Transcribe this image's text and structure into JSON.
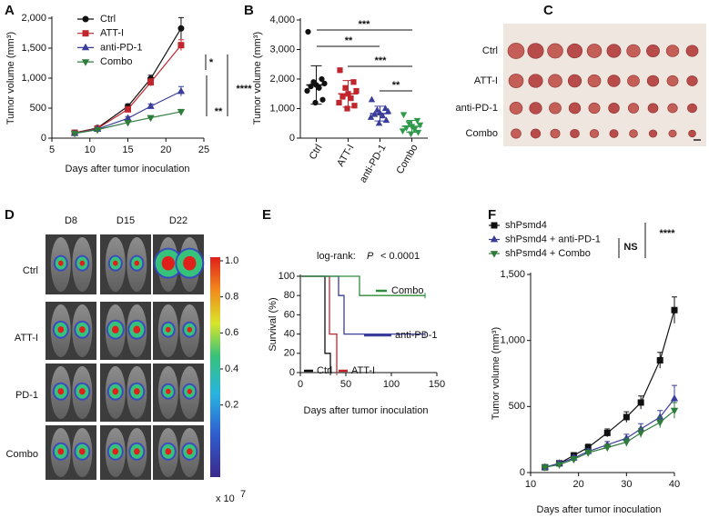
{
  "chart_data": [
    {
      "type": "line",
      "panel": "A",
      "x_label": "Days after tumor inoculation",
      "y_label": "Tumor volume (mm³)",
      "xlim": [
        5,
        25
      ],
      "xticks": [
        5,
        10,
        15,
        20,
        25
      ],
      "ylim": [
        0,
        2000
      ],
      "yticks": [
        0,
        500,
        {
          "value": 1000,
          "label": "1,000"
        },
        {
          "value": 1500,
          "label": "1,500"
        },
        {
          "value": 2000,
          "label": "2,000"
        }
      ],
      "x": [
        8,
        11,
        15,
        18,
        22
      ],
      "series": [
        {
          "name": "Ctrl",
          "color": "#111111",
          "marker": "circle",
          "values": [
            90,
            170,
            530,
            990,
            1830
          ],
          "errors": [
            15,
            20,
            40,
            60,
            180
          ]
        },
        {
          "name": "ATT-I",
          "color": "#c0262d",
          "marker": "square",
          "values": [
            90,
            160,
            480,
            930,
            1550
          ],
          "errors": [
            15,
            20,
            40,
            60,
            90
          ]
        },
        {
          "name": "anti-PD-1",
          "color": "#3a3d99",
          "marker": "triangle",
          "values": [
            80,
            150,
            330,
            530,
            780
          ],
          "errors": [
            15,
            20,
            30,
            40,
            80
          ]
        },
        {
          "name": "Combo",
          "color": "#2e7d3a",
          "marker": "triangle-down",
          "values": [
            80,
            140,
            260,
            340,
            440
          ],
          "errors": [
            15,
            20,
            25,
            30,
            40
          ]
        }
      ],
      "annotations": [
        "*",
        "**",
        "****"
      ]
    },
    {
      "type": "dot",
      "panel": "B",
      "y_label": "Tumor volume (mm³)",
      "ylim": [
        0,
        4000
      ],
      "yticks": [
        0,
        {
          "value": 1000,
          "label": "1,000"
        },
        {
          "value": 2000,
          "label": "2,000"
        },
        {
          "value": 3000,
          "label": "3,000"
        },
        {
          "value": 4000,
          "label": "4,000"
        }
      ],
      "groups": [
        {
          "name": "Ctrl",
          "color": "#111111",
          "marker": "circle",
          "points": [
            3600,
            2000,
            1900,
            1850,
            1800,
            1750,
            1700,
            1600,
            1300,
            1200
          ],
          "mean": 1800,
          "sd": 650
        },
        {
          "name": "ATT-I",
          "color": "#c0262d",
          "marker": "square",
          "points": [
            2300,
            1900,
            1700,
            1600,
            1500,
            1400,
            1350,
            1200,
            1100,
            1000
          ],
          "mean": 1500,
          "sd": 450
        },
        {
          "name": "anti-PD-1",
          "color": "#3a3d99",
          "marker": "triangle",
          "points": [
            1300,
            1000,
            950,
            900,
            850,
            800,
            750,
            700,
            600,
            500
          ],
          "mean": 830,
          "sd": 250
        },
        {
          "name": "Combo",
          "color": "#2e9a4a",
          "marker": "triangle-down",
          "points": [
            800,
            600,
            500,
            450,
            400,
            350,
            300,
            250,
            200,
            150
          ],
          "mean": 400,
          "sd": 200
        }
      ],
      "annotations": [
        "***",
        "**",
        "***",
        "**"
      ]
    },
    {
      "type": "step",
      "panel": "E",
      "x_label": "Days after tumor inoculation",
      "y_label": "Survival (%)",
      "xlim": [
        0,
        150
      ],
      "xticks": [
        0,
        50,
        100,
        150
      ],
      "ylim": [
        0,
        100
      ],
      "yticks": [
        0,
        20,
        40,
        60,
        80,
        100
      ],
      "annotation_prefix": "log-rank:",
      "annotation_italic": "P",
      "annotation_suffix": "< 0.0001",
      "series": [
        {
          "name": "Ctrl",
          "color": "#111111",
          "x": [
            0,
            27,
            33
          ],
          "values": [
            100,
            20,
            0
          ]
        },
        {
          "name": "ATT-I",
          "color": "#c0262d",
          "x": [
            0,
            32,
            40
          ],
          "values": [
            100,
            40,
            0
          ]
        },
        {
          "name": "anti-PD-1",
          "color": "#3a3d99",
          "x": [
            0,
            42,
            48,
            137
          ],
          "values": [
            100,
            80,
            40,
            40
          ]
        },
        {
          "name": "Combo",
          "color": "#2e8b3a",
          "x": [
            0,
            65,
            137
          ],
          "values": [
            100,
            80,
            80
          ]
        }
      ]
    },
    {
      "type": "line",
      "panel": "F",
      "x_label": "Days after tumor inoculation",
      "y_label": "Tumor volume (mm³)",
      "xlim": [
        10,
        40
      ],
      "xticks": [
        10,
        20,
        30,
        40
      ],
      "ylim": [
        0,
        1500
      ],
      "yticks": [
        0,
        500,
        {
          "value": 1000,
          "label": "1,000"
        },
        {
          "value": 1500,
          "label": "1,500"
        }
      ],
      "x": [
        13,
        16,
        19,
        22,
        26,
        30,
        33,
        37,
        40
      ],
      "series": [
        {
          "name": "shPsmd4",
          "color": "#111111",
          "marker": "square",
          "values": [
            40,
            70,
            130,
            190,
            300,
            420,
            530,
            850,
            1230
          ],
          "errors": [
            15,
            15,
            20,
            25,
            30,
            40,
            50,
            60,
            100
          ]
        },
        {
          "name": "shPsmd4 + anti-PD-1",
          "color": "#3a3d99",
          "marker": "triangle",
          "values": [
            40,
            70,
            110,
            160,
            210,
            260,
            330,
            420,
            560
          ],
          "errors": [
            15,
            15,
            20,
            20,
            25,
            30,
            40,
            50,
            100
          ]
        },
        {
          "name": "shPsmd4 + Combo",
          "color": "#2e7d3a",
          "marker": "triangle-down",
          "values": [
            40,
            60,
            100,
            150,
            190,
            230,
            300,
            380,
            470
          ],
          "errors": [
            15,
            15,
            20,
            20,
            25,
            30,
            35,
            40,
            60
          ]
        }
      ],
      "annotations": [
        "NS",
        "****"
      ]
    }
  ],
  "photo_panels": [
    {
      "panel": "C",
      "row_labels": [
        "Ctrl",
        "ATT-I",
        "anti-PD-1",
        "Combo"
      ]
    },
    {
      "panel": "D",
      "column_labels": [
        "D8",
        "D15",
        "D22"
      ],
      "row_labels": [
        "Ctrl",
        "ATT-I",
        "PD-1",
        "Combo"
      ],
      "colorbar": {
        "clim": [
          -0.2,
          1.0
        ],
        "ticks": [
          {
            "value": 1,
            "label": "1.0"
          },
          0.8,
          0.6,
          0.4,
          0.2
        ],
        "scale_label": "x 10",
        "scale_exponent": "7"
      }
    }
  ]
}
